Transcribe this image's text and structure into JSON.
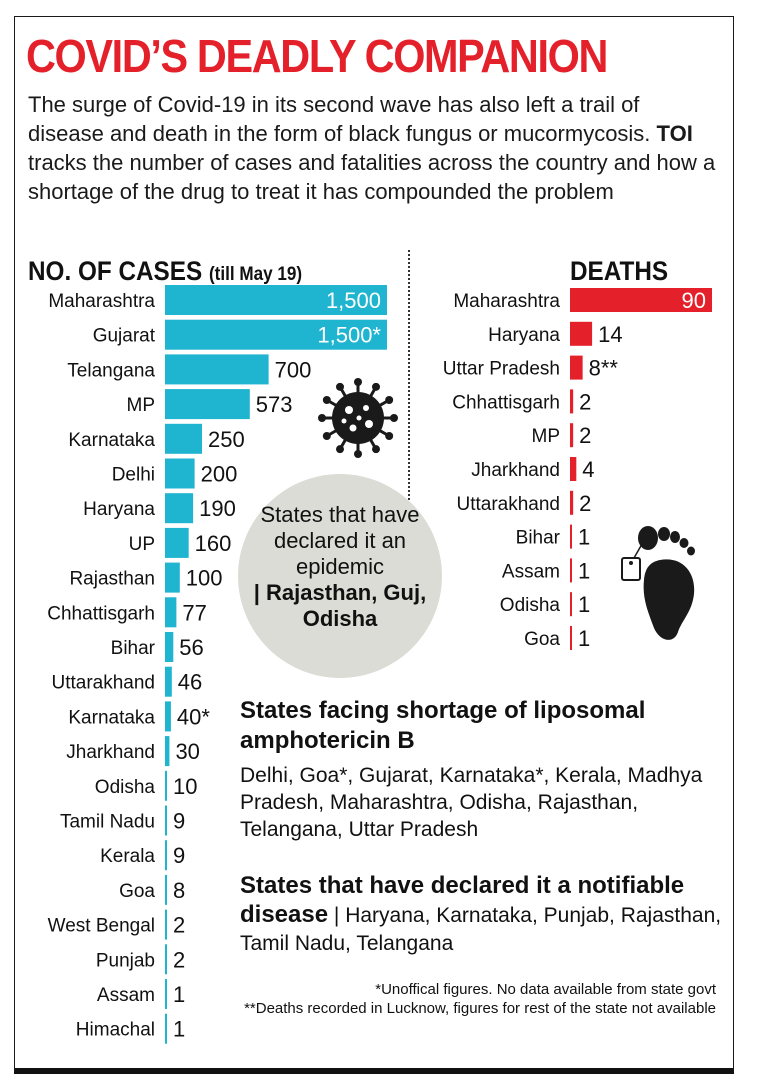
{
  "title": "COVID’S DEADLY COMPANION",
  "intro": {
    "before": "The surge of Covid-19 in its second wave has also left a trail of disease and death in the form of black fungus or mucormycosis. ",
    "bold": "TOI",
    "after": " tracks the number of cases and fatalities across the country and how a shortage of the drug to treat it has compounded the problem"
  },
  "cases_heading": {
    "main": "NO. OF CASES",
    "sub": "(till May 19)"
  },
  "deaths_heading": "DEATHS",
  "colors": {
    "cases_bar": "#1fb4d0",
    "deaths_bar": "#e4202a",
    "title": "#e4202a"
  },
  "chart_data": [
    {
      "type": "bar",
      "orientation": "horizontal",
      "title": "NO. OF CASES (till May 19)",
      "categories": [
        "Maharashtra",
        "Gujarat",
        "Telangana",
        "MP",
        "Karnataka",
        "Delhi",
        "Haryana",
        "UP",
        "Rajasthan",
        "Chhattisgarh",
        "Bihar",
        "Uttarakhand",
        "Karnataka",
        "Jharkhand",
        "Odisha",
        "Tamil Nadu",
        "Kerala",
        "Goa",
        "West Bengal",
        "Punjab",
        "Assam",
        "Himachal"
      ],
      "values": [
        1500,
        1500,
        700,
        573,
        250,
        200,
        190,
        160,
        100,
        77,
        56,
        46,
        40,
        30,
        10,
        9,
        9,
        8,
        2,
        2,
        1,
        1
      ],
      "labels": [
        "1,500",
        "1,500*",
        "700",
        "573",
        "250",
        "200",
        "190",
        "160",
        "100",
        "77",
        "56",
        "46",
        "40*",
        "30",
        "10",
        "9",
        "9",
        "8",
        "2",
        "2",
        "1",
        "1"
      ],
      "xlim": [
        0,
        1500
      ]
    },
    {
      "type": "bar",
      "orientation": "horizontal",
      "title": "DEATHS",
      "categories": [
        "Maharashtra",
        "Haryana",
        "Uttar Pradesh",
        "Chhattisgarh",
        "MP",
        "Jharkhand",
        "Uttarakhand",
        "Bihar",
        "Assam",
        "Odisha",
        "Goa"
      ],
      "values": [
        90,
        14,
        8,
        2,
        2,
        4,
        2,
        1,
        1,
        1,
        1
      ],
      "labels": [
        "90",
        "14",
        "8**",
        "2",
        "2",
        "4",
        "2",
        "1",
        "1",
        "1",
        "1"
      ],
      "xlim": [
        0,
        90
      ]
    }
  ],
  "epidemic": {
    "text": "States that have declared it an epidemic",
    "states": "| Rajasthan, Guj, Odisha"
  },
  "shortage": {
    "title": "States facing shortage of liposomal amphotericin B",
    "body": "Delhi, Goa*, Gujarat, Karnataka*, Kerala, Madhya Pradesh, Maharashtra, Odisha, Rajasthan, Telangana, Uttar Pradesh"
  },
  "notifiable": {
    "title": "States that have declared it a notifiable disease",
    "body": " | Haryana, Karnataka, Punjab, Rajasthan, Tamil Nadu, Telangana"
  },
  "notes": {
    "note1": "*Unoffical figures. No data available from state govt",
    "note2": "**Deaths recorded in Lucknow, figures for rest of the state not available"
  },
  "icons": {
    "virus": "virus-icon",
    "foot": "foot-tag-icon"
  }
}
